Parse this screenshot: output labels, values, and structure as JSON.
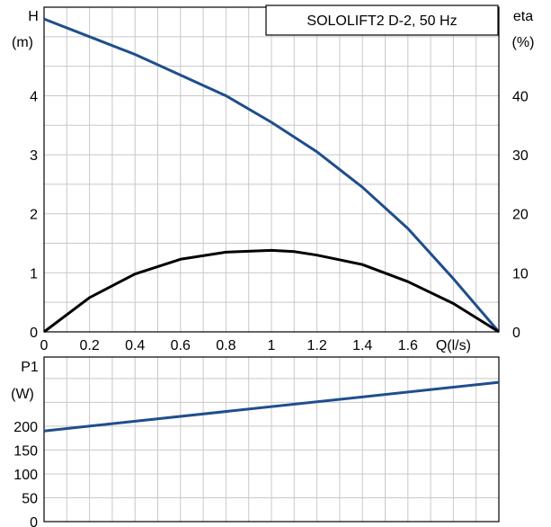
{
  "chart_data": [
    {
      "type": "line",
      "title": "SOLOLIFT2 D-2, 50 Hz",
      "xlabel": "Q(l/s)",
      "ylabel": "H",
      "ylabel_unit": "(m)",
      "y2label": "eta",
      "y2label_unit": "(%)",
      "xlim": [
        0,
        2
      ],
      "ylim": [
        0,
        5.5
      ],
      "y2lim": [
        0,
        55
      ],
      "x_tick_labels": [
        "0",
        "0.2",
        "0.4",
        "0.6",
        "0.8",
        "1",
        "1.2",
        "1.4",
        "1.6",
        "Q(l/s)"
      ],
      "x_tick_values": [
        0,
        0.2,
        0.4,
        0.6,
        0.8,
        1.0,
        1.2,
        1.4,
        1.6,
        1.8
      ],
      "y_tick_labels": [
        "0",
        "1",
        "2",
        "3",
        "4"
      ],
      "y_tick_values": [
        0,
        1,
        2,
        3,
        4
      ],
      "y2_tick_labels": [
        "0",
        "10",
        "20",
        "30",
        "40"
      ],
      "y2_tick_values": [
        0,
        10,
        20,
        30,
        40
      ],
      "grid": true,
      "series": [
        {
          "axis": "left",
          "color": "#1f4e8c",
          "x": [
            0,
            0.2,
            0.4,
            0.6,
            0.8,
            1.0,
            1.1,
            1.2,
            1.4,
            1.6,
            1.8,
            2.0
          ],
          "y": [
            5.3,
            5.0,
            4.7,
            4.35,
            4.0,
            3.55,
            3.3,
            3.05,
            2.45,
            1.75,
            0.9,
            0.0
          ]
        },
        {
          "axis": "right",
          "color": "#000000",
          "x": [
            0,
            0.2,
            0.4,
            0.6,
            0.8,
            1.0,
            1.1,
            1.2,
            1.4,
            1.6,
            1.8,
            2.0
          ],
          "y": [
            0,
            5.8,
            9.8,
            12.3,
            13.5,
            13.8,
            13.6,
            13.0,
            11.4,
            8.5,
            4.8,
            0
          ]
        }
      ]
    },
    {
      "type": "line",
      "ylabel": "P1",
      "ylabel_unit": "(W)",
      "xlim": [
        0,
        2
      ],
      "ylim": [
        0,
        345
      ],
      "y_tick_labels": [
        "0",
        "50",
        "100",
        "150",
        "200"
      ],
      "y_tick_values": [
        0,
        50,
        100,
        150,
        200
      ],
      "grid": true,
      "series": [
        {
          "axis": "left",
          "color": "#1f4e8c",
          "x": [
            0,
            2.0
          ],
          "y": [
            190,
            292
          ]
        }
      ]
    }
  ]
}
